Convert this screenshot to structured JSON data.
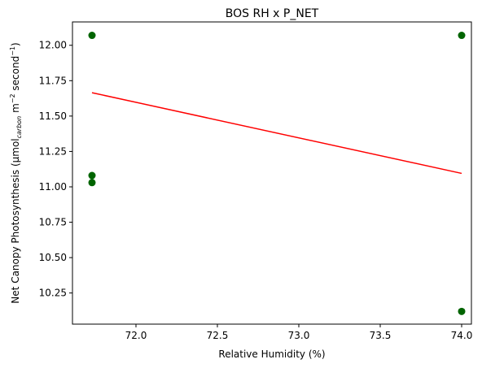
{
  "chart_data": {
    "type": "scatter",
    "title": "BOS RH x P_NET",
    "xlabel": "Relative Humidity (%)",
    "ylabel": {
      "main": "Net Canopy Photosynthesis (μmol",
      "sub": "carbon",
      "mid": " m",
      "sup1": "−2",
      "mid2": " second",
      "sup2": "−1",
      "end": ")"
    },
    "xlim": [
      71.61,
      74.06
    ],
    "ylim": [
      10.03,
      12.165
    ],
    "xticks": [
      72.0,
      72.5,
      73.0,
      73.5,
      74.0
    ],
    "xtick_labels": [
      "72.0",
      "72.5",
      "73.0",
      "73.5",
      "74.0"
    ],
    "yticks": [
      10.25,
      10.5,
      10.75,
      11.0,
      11.25,
      11.5,
      11.75,
      12.0
    ],
    "ytick_labels": [
      "10.25",
      "10.50",
      "10.75",
      "11.00",
      "11.25",
      "11.50",
      "11.75",
      "12.00"
    ],
    "points": [
      {
        "x": 71.73,
        "y": 12.07
      },
      {
        "x": 71.73,
        "y": 11.08
      },
      {
        "x": 71.73,
        "y": 11.03
      },
      {
        "x": 74.0,
        "y": 12.07
      },
      {
        "x": 74.0,
        "y": 10.12
      }
    ],
    "trend_line": {
      "x": [
        71.73,
        74.0
      ],
      "y": [
        11.665,
        11.095
      ]
    },
    "point_color": "#006400",
    "line_color": "#ff0000",
    "grid": false
  }
}
